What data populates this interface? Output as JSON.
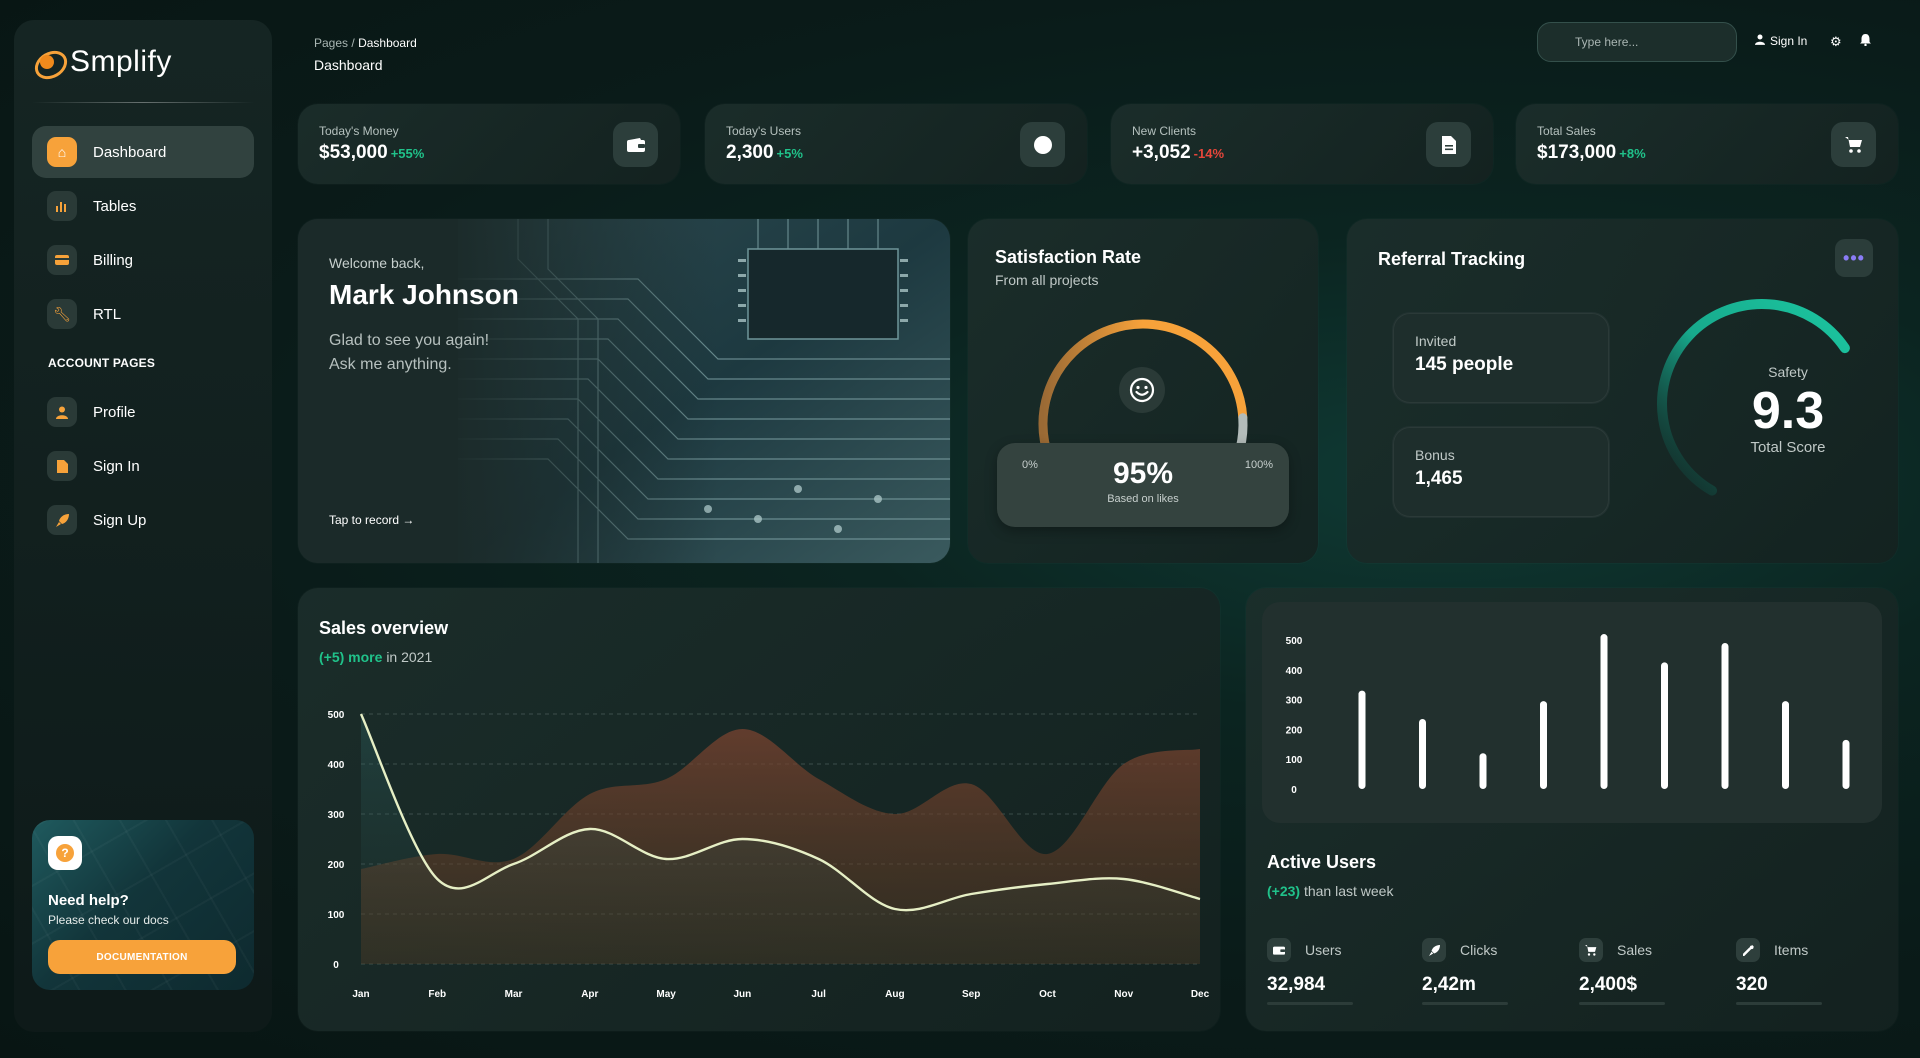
{
  "brand": {
    "name": "Smplify"
  },
  "sidebar": {
    "items": [
      {
        "label": "Dashboard",
        "icon": "home-icon",
        "active": true
      },
      {
        "label": "Tables",
        "icon": "bar-chart-icon"
      },
      {
        "label": "Billing",
        "icon": "credit-card-icon"
      },
      {
        "label": "RTL",
        "icon": "wrench-icon"
      }
    ],
    "section_label": "ACCOUNT PAGES",
    "account_items": [
      {
        "label": "Profile",
        "icon": "user-icon"
      },
      {
        "label": "Sign In",
        "icon": "document-icon"
      },
      {
        "label": "Sign Up",
        "icon": "rocket-icon"
      }
    ],
    "help": {
      "title": "Need help?",
      "subtitle": "Please check our docs",
      "button": "DOCUMENTATION",
      "icon": "question-icon"
    }
  },
  "header": {
    "breadcrumb_parent": "Pages",
    "breadcrumb_sep": "/",
    "breadcrumb_current": "Dashboard",
    "title": "Dashboard",
    "search_placeholder": "Type here...",
    "signin_label": "Sign In"
  },
  "stats": [
    {
      "label": "Today's Money",
      "value": "$53,000",
      "change": "+55%",
      "positive": true,
      "icon": "wallet-icon"
    },
    {
      "label": "Today's Users",
      "value": "2,300",
      "change": "+5%",
      "positive": true,
      "icon": "globe-icon"
    },
    {
      "label": "New Clients",
      "value": "+3,052",
      "change": "-14%",
      "positive": false,
      "icon": "document-icon"
    },
    {
      "label": "Total Sales",
      "value": "$173,000",
      "change": "+8%",
      "positive": true,
      "icon": "cart-icon"
    }
  ],
  "welcome": {
    "greeting": "Welcome back,",
    "name": "Mark Johnson",
    "line1": "Glad to see you again!",
    "line2": "Ask me anything.",
    "link": "Tap to record",
    "link_arrow": "→"
  },
  "satisfaction": {
    "title": "Satisfaction Rate",
    "subtitle": "From all projects",
    "min_label": "0%",
    "max_label": "100%",
    "value_label": "95%",
    "value": 95,
    "note": "Based on likes"
  },
  "referral": {
    "title": "Referral Tracking",
    "invited_label": "Invited",
    "invited_value": "145 people",
    "bonus_label": "Bonus",
    "bonus_value": "1,465",
    "safety_label": "Safety",
    "score": "9.3",
    "score_label": "Total Score",
    "score_value": 9.3,
    "score_max": 10,
    "more_icon": "ellipsis-icon"
  },
  "sales_overview": {
    "title": "Sales overview",
    "sub_highlight": "(+5) more",
    "sub_rest": "in 2021"
  },
  "active_users": {
    "title": "Active Users",
    "sub_highlight": "(+23)",
    "sub_rest": "than last week",
    "metrics": [
      {
        "label": "Users",
        "value": "32,984",
        "icon": "wallet-icon"
      },
      {
        "label": "Clicks",
        "value": "2,42m",
        "icon": "rocket-icon"
      },
      {
        "label": "Sales",
        "value": "2,400$",
        "icon": "cart-icon"
      },
      {
        "label": "Items",
        "value": "320",
        "icon": "wrench-icon"
      }
    ]
  },
  "colors": {
    "accent": "#f7a23a",
    "positive": "#20c28a",
    "negative": "#e5463a",
    "teal": "#17a98c"
  },
  "chart_data": [
    {
      "type": "area",
      "categories": [
        "Jan",
        "Feb",
        "Mar",
        "Apr",
        "May",
        "Jun",
        "Jul",
        "Aug",
        "Sep",
        "Oct",
        "Nov",
        "Dec"
      ],
      "ylim": [
        0,
        500
      ],
      "yticks": [
        0,
        100,
        200,
        300,
        400,
        500
      ],
      "series": [
        {
          "values": [
            500,
            170,
            200,
            270,
            210,
            250,
            210,
            110,
            140,
            160,
            170,
            130
          ],
          "color": "#e6efc5"
        },
        {
          "values": [
            190,
            220,
            210,
            340,
            370,
            470,
            370,
            300,
            360,
            220,
            400,
            430
          ],
          "color": "#9c5a33"
        }
      ]
    },
    {
      "type": "bar",
      "ylim": [
        0,
        500
      ],
      "yticks": [
        0,
        100,
        200,
        300,
        400,
        500
      ],
      "values": [
        330,
        235,
        120,
        295,
        520,
        425,
        490,
        295,
        165
      ]
    }
  ]
}
